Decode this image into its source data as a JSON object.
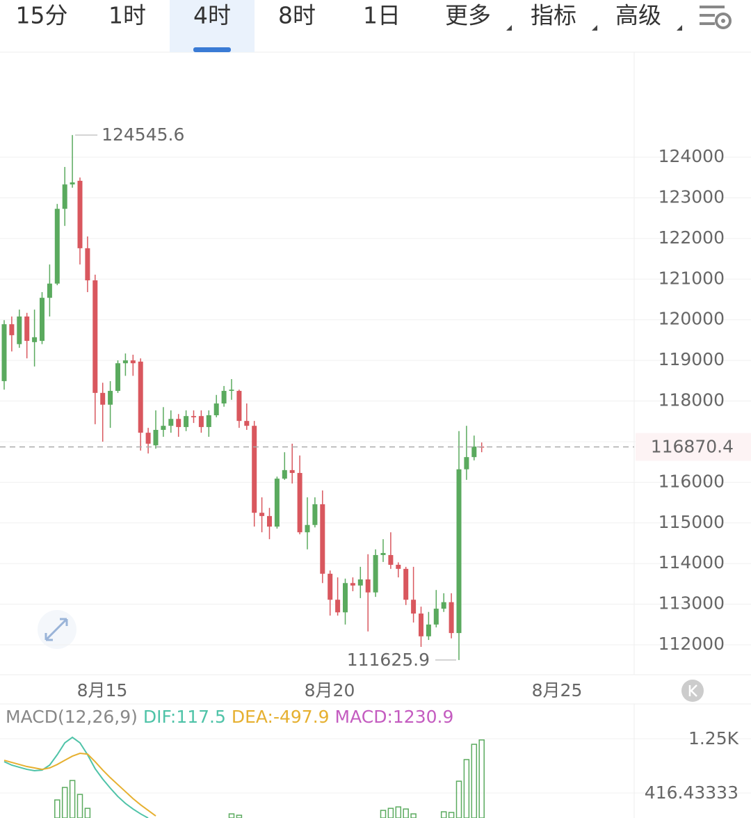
{
  "tabs": [
    "15分",
    "1时",
    "4时",
    "8时",
    "1日",
    "更多",
    "指标",
    "高级"
  ],
  "active_tab": 2,
  "chart_data": [
    {
      "type": "candlestick",
      "x_labels": [
        "8月15",
        "8月20",
        "8月25"
      ],
      "open": [
        118490,
        119890,
        119400,
        120080,
        119450,
        119480,
        120540,
        120890,
        122730,
        123330,
        123420,
        121760,
        120970,
        118200,
        117910,
        118250,
        118930,
        119000,
        118970,
        117220,
        116910,
        117290,
        117390,
        117560,
        117360,
        117630,
        117630,
        117360,
        117650,
        117940,
        118250,
        118250,
        117510,
        117390,
        115250,
        115170,
        114910,
        116090,
        116300,
        116230,
        114770,
        114950,
        115460,
        113750,
        113110,
        112800,
        113520,
        113460,
        113610,
        113290,
        114210,
        114210,
        113970,
        113870,
        113110,
        112770,
        112210,
        112500,
        112890,
        113050,
        112290,
        116320,
        116620,
        116880
      ],
      "high": [
        119990,
        120080,
        120250,
        120170,
        120250,
        120680,
        121360,
        122850,
        123760,
        124545.6,
        123500,
        122050,
        121110,
        118450,
        118490,
        119000,
        119170,
        119140,
        119050,
        117340,
        117770,
        117850,
        117770,
        117680,
        117770,
        117770,
        117770,
        117770,
        118150,
        118370,
        118540,
        118280,
        117940,
        117510,
        115630,
        115370,
        116140,
        116740,
        116950,
        116660,
        115630,
        115630,
        115800,
        113830,
        113660,
        113630,
        113660,
        113920,
        114230,
        114350,
        114600,
        114770,
        114030,
        113920,
        113920,
        112940,
        112810,
        113350,
        113270,
        113270,
        117260,
        117390,
        117150,
        116980
      ],
      "low": [
        118280,
        119220,
        119310,
        119050,
        118850,
        119400,
        120080,
        120850,
        122310,
        123250,
        121360,
        120680,
        117430,
        117000,
        117340,
        118200,
        118620,
        118620,
        116780,
        116710,
        116830,
        117120,
        117220,
        117120,
        117260,
        117460,
        117220,
        117120,
        117600,
        117860,
        118030,
        117340,
        117290,
        114910,
        114770,
        114600,
        114860,
        116060,
        115970,
        114720,
        114350,
        114890,
        113520,
        112720,
        112720,
        112500,
        113320,
        113150,
        112330,
        113180,
        114040,
        113870,
        113660,
        112980,
        112550,
        111950,
        112120,
        112430,
        112810,
        112160,
        111625.9,
        116060,
        116540,
        116740
      ],
      "close": [
        119890,
        119620,
        120080,
        119480,
        119570,
        120540,
        120890,
        122730,
        123330,
        123380,
        121760,
        120970,
        118200,
        117910,
        118250,
        118930,
        119000,
        118930,
        117220,
        116950,
        117290,
        117390,
        117560,
        117360,
        117630,
        117600,
        117360,
        117650,
        117940,
        118250,
        118280,
        117510,
        117390,
        115250,
        115170,
        114910,
        116090,
        116300,
        116230,
        114770,
        114950,
        115460,
        113750,
        113110,
        112800,
        113520,
        113460,
        113610,
        113290,
        114210,
        114260,
        113970,
        113870,
        113110,
        112770,
        112210,
        112500,
        112890,
        113050,
        112290,
        116320,
        116620,
        116880,
        116870.4
      ],
      "up_color": "#5aaa5e",
      "down_color": "#d9575e",
      "ylim": [
        111265,
        126585
      ],
      "yticks": [
        112000,
        113000,
        114000,
        115000,
        116000,
        117000,
        118000,
        119000,
        120000,
        121000,
        122000,
        123000,
        124000
      ],
      "grid": true,
      "last_price": 116870.4
    },
    {
      "type": "macd",
      "title": "MACD(12,26,9)",
      "series": [
        {
          "name": "DIF:117.5",
          "color": "#4fc3a8",
          "values": [
            897,
            844,
            811,
            779,
            758,
            768,
            844,
            1004,
            1186,
            1271,
            1186,
            1004,
            790,
            630,
            491,
            362,
            256,
            170,
            95,
            31,
            null,
            null,
            null,
            null,
            null,
            null,
            null,
            null,
            null,
            null,
            null,
            null,
            null,
            null,
            null,
            null,
            null,
            null,
            null,
            null,
            null,
            null,
            null,
            null,
            null,
            null,
            null,
            null,
            null,
            null,
            null,
            null,
            null,
            null,
            null,
            null,
            null,
            null,
            null,
            null,
            null,
            null,
            null,
            null
          ]
        },
        {
          "name": "DEA:-497.9",
          "color": "#e6b030",
          "values": [
            918,
            886,
            854,
            822,
            801,
            779,
            801,
            854,
            918,
            982,
            1025,
            1014,
            897,
            768,
            651,
            544,
            437,
            330,
            234,
            149,
            63,
            null,
            null,
            null,
            null,
            null,
            null,
            null,
            null,
            null,
            null,
            null,
            null,
            null,
            null,
            null,
            null,
            null,
            null,
            null,
            null,
            null,
            null,
            null,
            null,
            null,
            null,
            null,
            null,
            null,
            null,
            null,
            null,
            null,
            null,
            null,
            null,
            null,
            null,
            null,
            null,
            null,
            null,
            null
          ]
        }
      ],
      "histogram": {
        "name": "MACD:1230.9",
        "color": "#c45cc0",
        "bar_color": "#5aaa5e",
        "values": [
          null,
          null,
          null,
          null,
          null,
          null,
          null,
          309,
          501,
          608,
          394,
          180,
          null,
          null,
          null,
          null,
          null,
          null,
          null,
          null,
          null,
          null,
          null,
          null,
          null,
          null,
          null,
          null,
          null,
          null,
          95,
          74,
          null,
          null,
          null,
          null,
          null,
          null,
          null,
          null,
          null,
          null,
          null,
          null,
          null,
          null,
          null,
          null,
          null,
          null,
          149,
          180,
          202,
          170,
          95,
          null,
          null,
          null,
          127,
          117,
          597,
          929,
          1164,
          1230.9
        ]
      },
      "ylim": [
        31.7,
        1485
      ],
      "yticks": [
        {
          "value": 1250,
          "label": "1.25K"
        },
        416.43333
      ]
    }
  ]
}
